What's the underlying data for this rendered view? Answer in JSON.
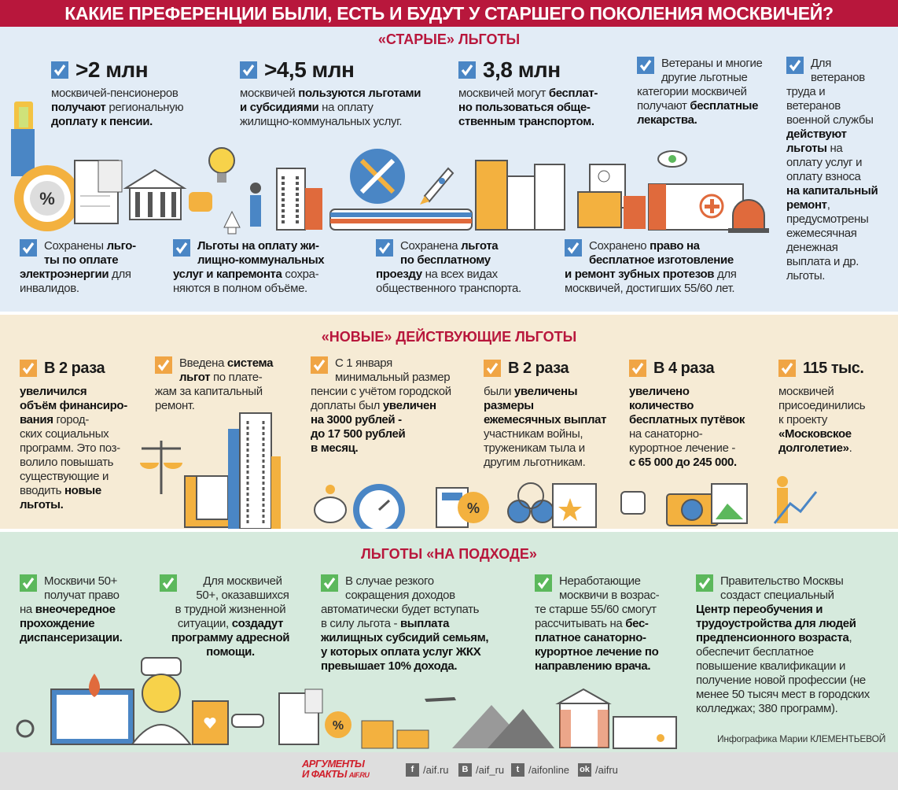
{
  "title": "КАКИЕ ПРЕФЕРЕНЦИИ БЫЛИ, ЕСТЬ И БУДУТ У СТАРШЕГО ПОКОЛЕНИЯ МОСКВИЧЕЙ?",
  "colors": {
    "header": "#b8173c",
    "check_old": "#4a86c5",
    "check_new": "#f0a545",
    "check_future": "#5cb85c"
  },
  "sections": [
    {
      "title": "«СТАРЫЕ» ЛЬГОТЫ",
      "items": [
        {
          "head": ">2 млн",
          "segs": [
            {
              "t": "москвичей-пенсионеров\n"
            },
            {
              "t": "получают",
              "b": 1
            },
            {
              "t": " региональную\n"
            },
            {
              "t": "доплату к пенсии.",
              "b": 1
            }
          ]
        },
        {
          "head": ">4,5 млн",
          "segs": [
            {
              "t": "москвичей "
            },
            {
              "t": "пользуются льготами\nи субсидиями",
              "b": 1
            },
            {
              "t": " на оплату\nжилищно-коммунальных услуг."
            }
          ]
        },
        {
          "head": "3,8 млн",
          "segs": [
            {
              "t": "москвичей могут "
            },
            {
              "t": "бесплат-\nно пользоваться обще-\nственным транспортом.",
              "b": 1
            }
          ]
        },
        {
          "segs": [
            {
              "t": "Ветераны и многие\nдругие льготные\nкатегории москвичей\nполучают "
            },
            {
              "t": "бесплатные\nлекарства.",
              "b": 1
            }
          ]
        },
        {
          "segs": [
            {
              "t": "Для\nветеранов\nтруда и\nветеранов\nвоенной службы\n"
            },
            {
              "t": "действуют\nльготы",
              "b": 1
            },
            {
              "t": " на\nоплату услуг и\nоплату взноса\n"
            },
            {
              "t": "на капитальный\nремонт",
              "b": 1
            },
            {
              "t": ", предусмотрены\nежемесячная\nденежная\nвыплата и др.\nльготы."
            }
          ]
        },
        {
          "segs": [
            {
              "t": "Сохранены "
            },
            {
              "t": "льго-\nты по оплате\nэлектроэнергии",
              "b": 1
            },
            {
              "t": " для\nинвалидов."
            }
          ]
        },
        {
          "segs": [
            {
              "t": "Льготы на оплату жи-\nлищно-коммунальных\nуслуг и капремонта",
              "b": 1
            },
            {
              "t": " сохра-\nняются в полном объёме."
            }
          ]
        },
        {
          "segs": [
            {
              "t": "Сохранена "
            },
            {
              "t": "льгота\nпо бесплатному\nпроезду",
              "b": 1
            },
            {
              "t": " на всех видах\nобщественного транспорта."
            }
          ]
        },
        {
          "segs": [
            {
              "t": "Сохранено "
            },
            {
              "t": "право на\nбесплатное изготовление\nи ремонт зубных протезов",
              "b": 1
            },
            {
              "t": " для\nмосквичей, достигших 55/60 лет."
            }
          ]
        }
      ]
    },
    {
      "title": "«НОВЫЕ» ДЕЙСТВУЮЩИЕ ЛЬГОТЫ",
      "items": [
        {
          "head": "В 2 раза",
          "segs": [
            {
              "t": "увеличился\nобъём финансиро-\nвания",
              "b": 1
            },
            {
              "t": " город-\nских социальных\nпрограмм. Это поз-\nволило повышать\nсуществующие и\nвводить "
            },
            {
              "t": "новые\nльготы.",
              "b": 1
            }
          ]
        },
        {
          "segs": [
            {
              "t": "Введена "
            },
            {
              "t": "система\nльгот",
              "b": 1
            },
            {
              "t": " по плате-\nжам за капитальный\nремонт."
            }
          ]
        },
        {
          "segs": [
            {
              "t": "С 1 января\nминимальный размер\nпенсии с учётом городской\nдоплаты был "
            },
            {
              "t": "увеличен\nна 3000 рублей -\nдо 17 500 рублей\nв месяц.",
              "b": 1
            }
          ]
        },
        {
          "head": "В 2 раза",
          "segs": [
            {
              "t": "были "
            },
            {
              "t": "увеличены\nразмеры\nежемесячных выплат",
              "b": 1
            },
            {
              "t": "\nучастникам войны,\nтруженикам тыла и\nдругим льготникам."
            }
          ]
        },
        {
          "head": "В 4 раза",
          "segs": [
            {
              "t": "увеличено\nколичество\nбесплатных путёвок",
              "b": 1
            },
            {
              "t": "\nна санаторно-\nкурортное лечение -\n"
            },
            {
              "t": "с 65 000 до 245 000.",
              "b": 1
            }
          ]
        },
        {
          "head": "115 тыс.",
          "segs": [
            {
              "t": "москвичей\nприсоединились\nк проекту\n"
            },
            {
              "t": "«Московское\nдолголетие»",
              "b": 1
            },
            {
              "t": "."
            }
          ]
        }
      ]
    },
    {
      "title": "ЛЬГОТЫ «НА ПОДХОДЕ»",
      "items": [
        {
          "segs": [
            {
              "t": "Москвичи 50+\nполучат право\nна "
            },
            {
              "t": "внеочередное\nпрохождение\nдиспансеризации.",
              "b": 1
            }
          ]
        },
        {
          "segs": [
            {
              "t": "Для москвичей\n50+, оказавшихся\nв трудной жизненной\nситуации, "
            },
            {
              "t": "создадут\nпрограмму адресной\nпомощи.",
              "b": 1
            }
          ]
        },
        {
          "segs": [
            {
              "t": "В случае резкого\nсокращения доходов\nавтоматически будет вступать\nв силу льгота - "
            },
            {
              "t": "выплата\nжилищных субсидий семьям,\nу которых оплата услуг ЖКХ\nпревышает 10% дохода.",
              "b": 1
            }
          ]
        },
        {
          "segs": [
            {
              "t": "Неработающие\nмосквичи в возрас-\nте старше 55/60 смогут\nрассчитывать на "
            },
            {
              "t": "бес-\nплатное санаторно-\nкурортное лечение по\nнаправлению врача.",
              "b": 1
            }
          ]
        },
        {
          "segs": [
            {
              "t": "Правительство Москвы\nсоздаст специальный\n"
            },
            {
              "t": "Центр переобучения и\nтрудоустройства для людей\nпредпенсионного возраста",
              "b": 1
            },
            {
              "t": ",\nобеспечит бесплатное\nповышение квалификации и\nполучение новой профессии  (не\nменее 50 тысяч мест в городских\nколледжах; 380 программ)."
            }
          ]
        }
      ]
    }
  ],
  "credit": "Инфографика Марии КЛЕМЕНТЬЕВОЙ",
  "footer": {
    "logo_line1": "АРГУМЕНТЫ",
    "logo_line2": "И ФАКТЫ",
    "logo_site": "AIF.RU",
    "social": [
      {
        "icon": "facebook-icon",
        "glyph": "f",
        "label": "/aif.ru"
      },
      {
        "icon": "vk-icon",
        "glyph": "В",
        "label": "/aif_ru"
      },
      {
        "icon": "twitter-icon",
        "glyph": "t",
        "label": "/aifonline"
      },
      {
        "icon": "odnoklassniki-icon",
        "glyph": "ok",
        "label": "/aifru"
      }
    ]
  }
}
